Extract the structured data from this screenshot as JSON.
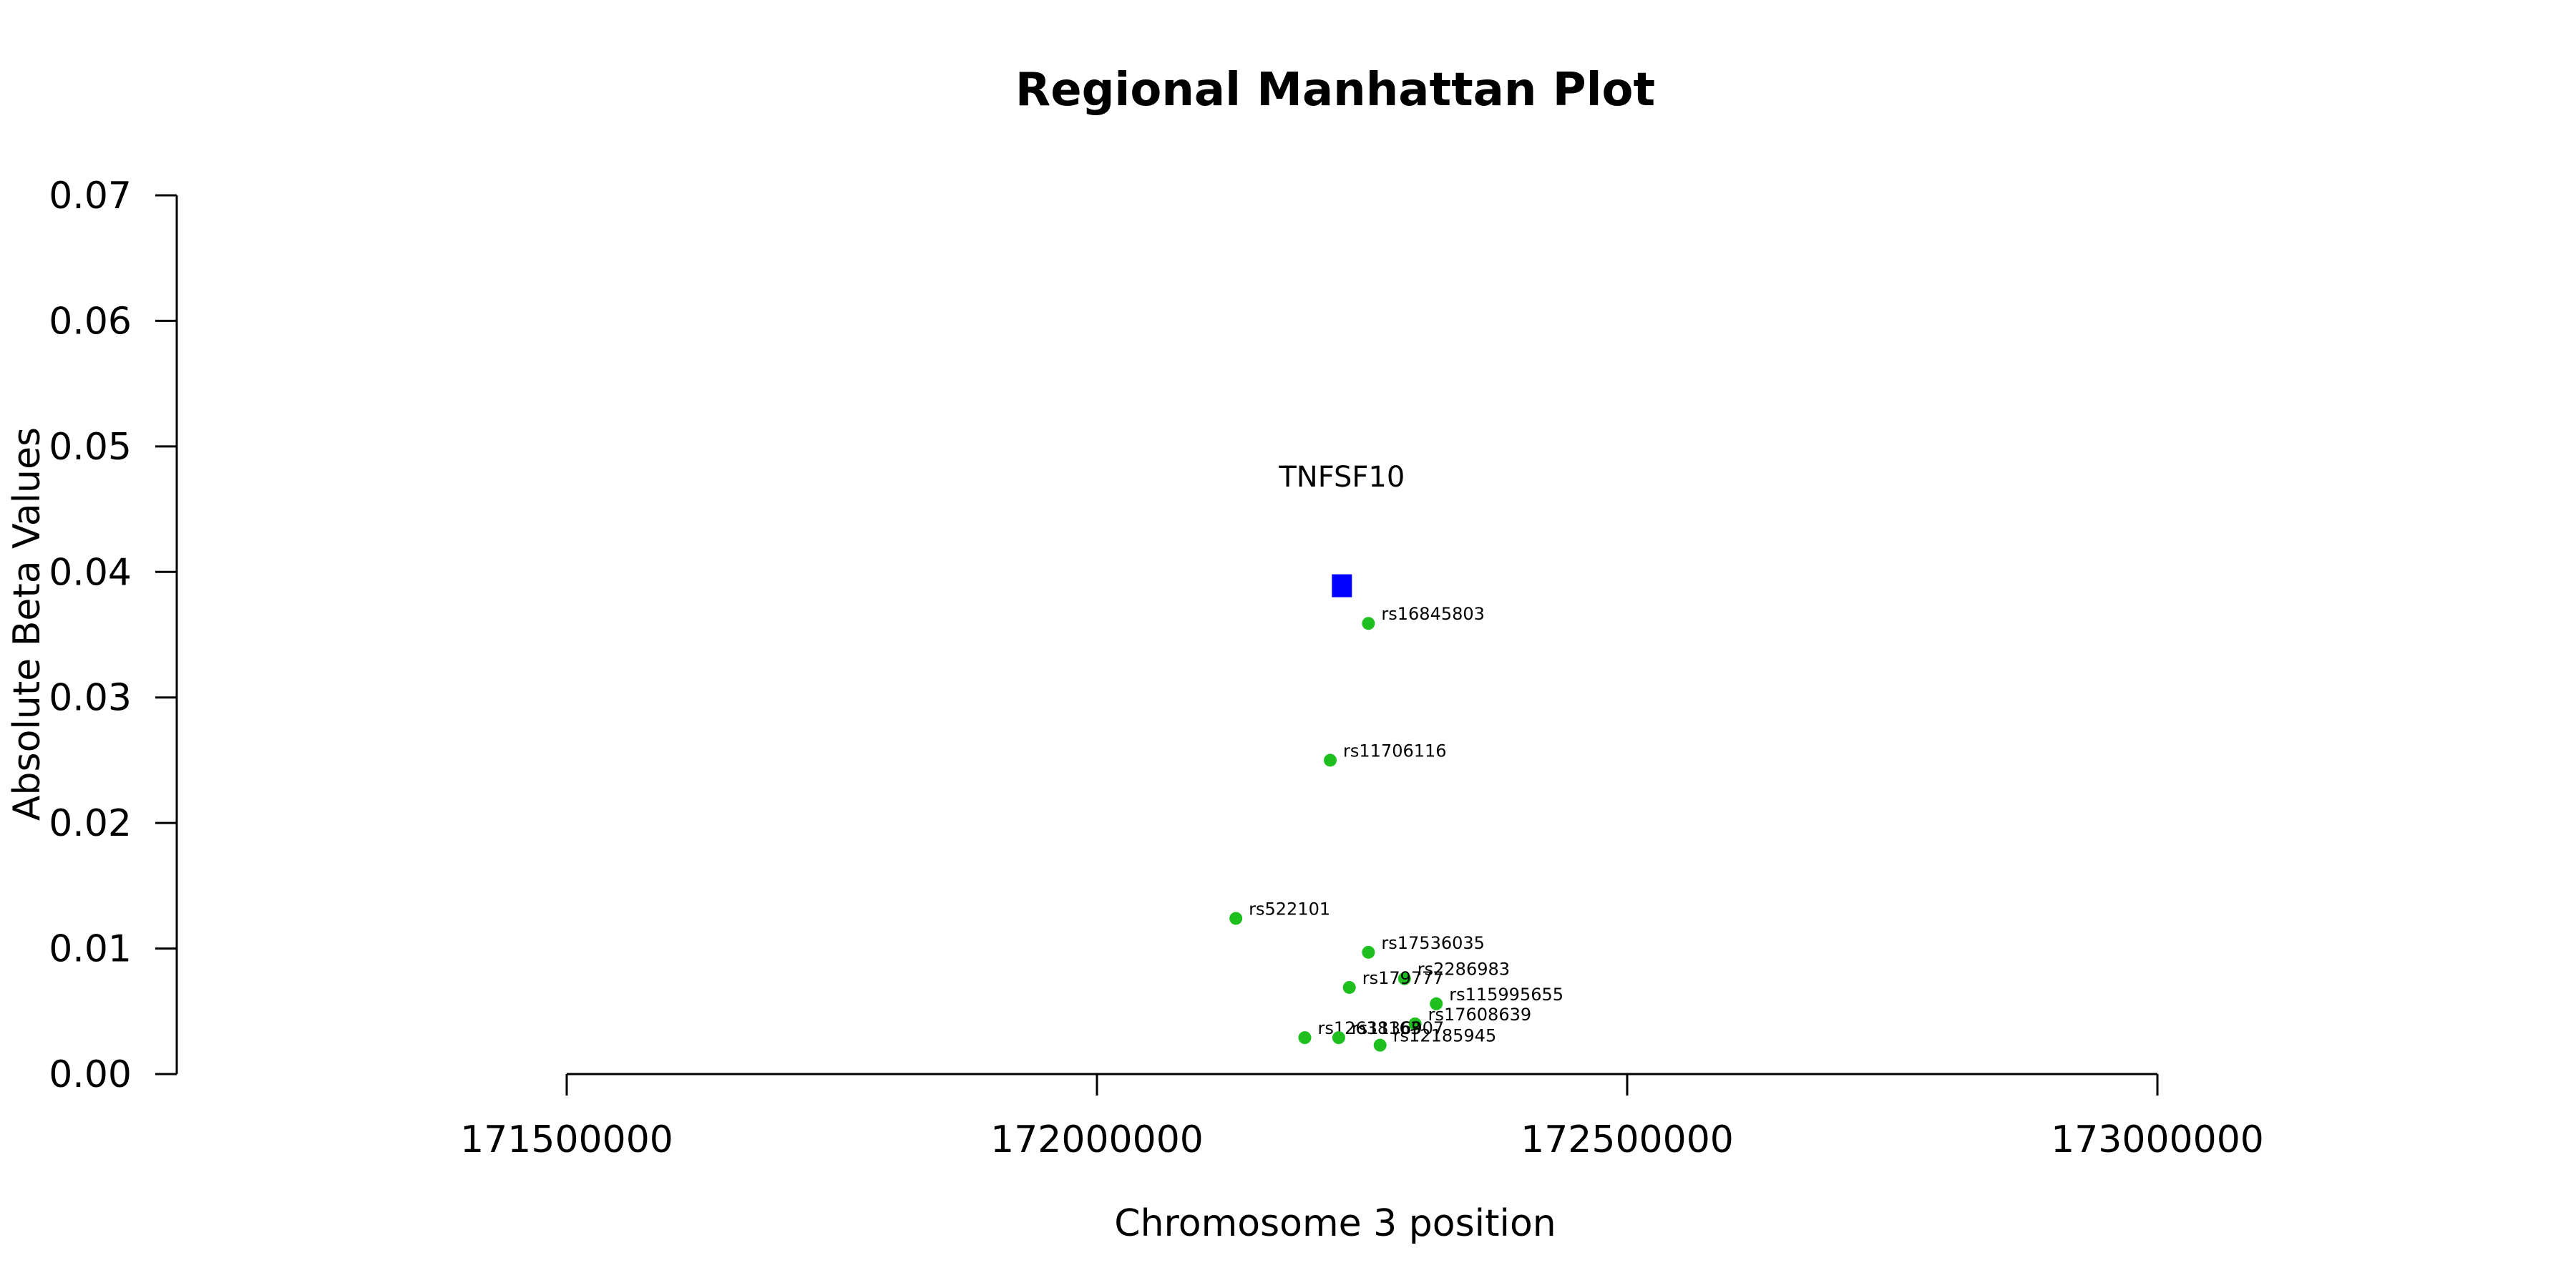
{
  "chart_data": {
    "type": "scatter",
    "title": "Regional Manhattan Plot",
    "xlabel": "Chromosome 3 position",
    "ylabel": "Absolute Beta Values",
    "xlim": [
      171500000,
      173000000
    ],
    "ylim": [
      0,
      0.07
    ],
    "x_ticks": [
      171500000,
      172000000,
      172500000,
      173000000
    ],
    "x_tick_labels": [
      "171500000",
      "172000000",
      "172500000",
      "173000000"
    ],
    "y_ticks": [
      0,
      0.01,
      0.02,
      0.03,
      0.04,
      0.05,
      0.06,
      0.07
    ],
    "y_tick_labels": [
      "0.00",
      "0.01",
      "0.02",
      "0.03",
      "0.04",
      "0.05",
      "0.06",
      "0.07"
    ],
    "grid": false,
    "gene": {
      "label": "TNFSF10",
      "x": 172231000,
      "y": 0.0389,
      "color": "#0000FF"
    },
    "snp_color": "#1FBF1F",
    "snps": [
      {
        "id": "rs16845803",
        "x": 172256000,
        "y": 0.0359
      },
      {
        "id": "rs11706116",
        "x": 172220000,
        "y": 0.025
      },
      {
        "id": "rs522101",
        "x": 172131000,
        "y": 0.0124
      },
      {
        "id": "rs17536035",
        "x": 172256000,
        "y": 0.0097
      },
      {
        "id": "rs2286983",
        "x": 172290000,
        "y": 0.0076
      },
      {
        "id": "rs179777",
        "x": 172238000,
        "y": 0.0069
      },
      {
        "id": "rs115995655",
        "x": 172320000,
        "y": 0.0056
      },
      {
        "id": "rs17608639",
        "x": 172300000,
        "y": 0.004
      },
      {
        "id": "rs12638163",
        "x": 172196000,
        "y": 0.0029
      },
      {
        "id": "rs1136907",
        "x": 172228000,
        "y": 0.0029
      },
      {
        "id": "rs12185945",
        "x": 172267000,
        "y": 0.0023
      }
    ]
  }
}
